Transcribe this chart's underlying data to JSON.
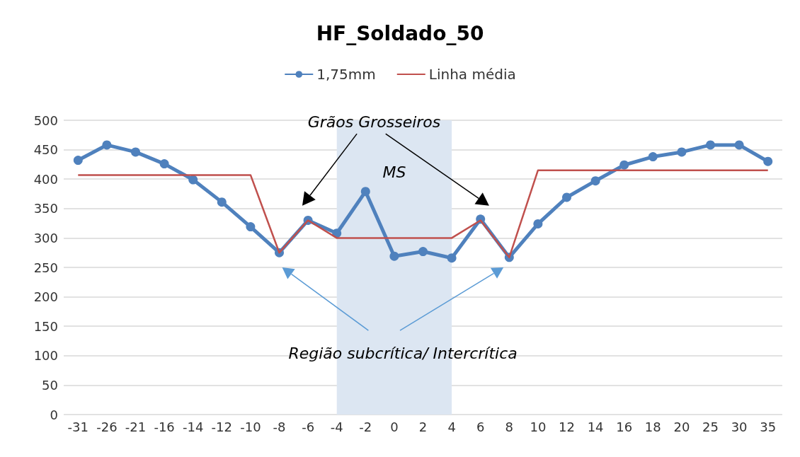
{
  "chart_data": {
    "type": "line",
    "title": "HF_Soldado_50",
    "categories": [
      "-31",
      "-26",
      "-21",
      "-16",
      "-14",
      "-12",
      "-10",
      "-8",
      "-6",
      "-4",
      "-2",
      "0",
      "2",
      "4",
      "6",
      "8",
      "10",
      "12",
      "14",
      "16",
      "18",
      "20",
      "25",
      "30",
      "35"
    ],
    "series": [
      {
        "name": "1,75mm",
        "color": "#4f81bd",
        "marker": "circle",
        "values": [
          432,
          458,
          446,
          426,
          399,
          361,
          319,
          275,
          330,
          308,
          379,
          269,
          277,
          266,
          332,
          267,
          324,
          369,
          397,
          424,
          438,
          446,
          458,
          458,
          430
        ]
      },
      {
        "name": "Linha média",
        "color": "#c0504d",
        "marker": "none",
        "values": [
          407,
          407,
          407,
          407,
          407,
          407,
          407,
          275,
          330,
          300,
          300,
          300,
          300,
          300,
          330,
          267,
          415,
          415,
          415,
          415,
          415,
          415,
          415,
          415,
          415
        ]
      }
    ],
    "ylim": [
      0,
      500
    ],
    "yticks": [
      0,
      50,
      100,
      150,
      200,
      250,
      300,
      350,
      400,
      450,
      500
    ],
    "grid": "y",
    "legend": "top",
    "bands": [
      {
        "axis": "x",
        "from": "-4",
        "to": "4",
        "label": "MS",
        "color": "#dce6f2"
      }
    ],
    "annotations": [
      "Grãos Grosseiros",
      "Região subcrítica/ Intercrítica"
    ]
  }
}
